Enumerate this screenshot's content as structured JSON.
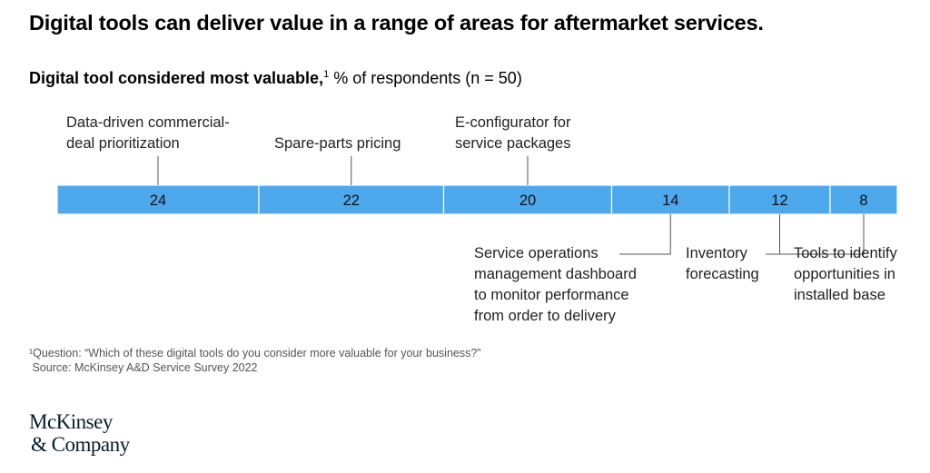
{
  "title": "Digital tools can deliver value in a range of areas for aftermarket services.",
  "subtitle": {
    "bold": "Digital tool considered most valuable,",
    "sup": "1",
    "rest": " % of respondents (n = 50)"
  },
  "chart_data": {
    "type": "bar",
    "orientation": "horizontal-stacked-100",
    "categories": [
      "Data-driven commercial-\ndeal prioritization",
      "Spare-parts pricing",
      "E-configurator for\nservice packages",
      "Service operations\nmanagement dashboard\nto monitor performance\nfrom order to delivery",
      "Inventory\nforecasting",
      "Tools to identify\nopportunities in\ninstalled base"
    ],
    "values": [
      24,
      22,
      20,
      14,
      12,
      8
    ],
    "label_side": [
      "top",
      "top",
      "top",
      "bottom",
      "bottom",
      "bottom"
    ],
    "color": "#4ea8ec",
    "ylim": [
      0,
      100
    ]
  },
  "footnote": "¹Question: “Which of these digital tools do you consider more valuable for your business?”",
  "source": " Source: McKinsey A&D Service Survey 2022",
  "logo": {
    "line1": "McKinsey",
    "line2": "& Company"
  }
}
